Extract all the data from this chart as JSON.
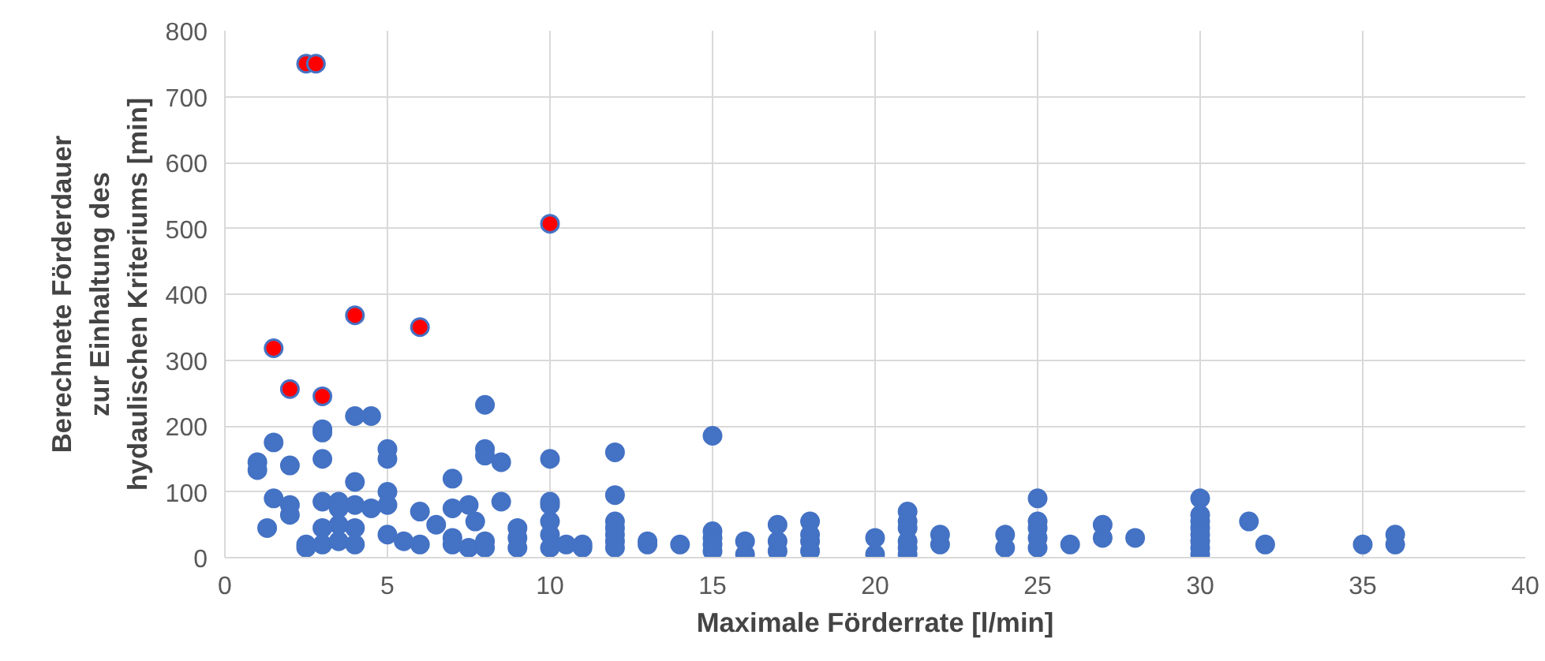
{
  "chart_data": {
    "type": "scatter",
    "xlabel": "Maximale Förderrate [l/min]",
    "ylabel": "Berechnete Förderdauer\nzur Einhaltung des\nhydaulischen Kriteriums [min]",
    "xlim": [
      0,
      40
    ],
    "ylim": [
      0,
      800
    ],
    "xticks": [
      0,
      5,
      10,
      15,
      20,
      25,
      30,
      35,
      40
    ],
    "yticks": [
      0,
      100,
      200,
      300,
      400,
      500,
      600,
      700,
      800
    ],
    "grid": true,
    "marker": "circle",
    "series": [
      {
        "color": "#4472c4",
        "x": [
          1,
          1,
          1.3,
          1.5,
          1.5,
          2,
          2,
          2,
          2.5,
          2.5,
          3,
          3,
          3,
          3,
          3,
          3,
          3.5,
          3.5,
          3.5,
          3.5,
          4,
          4,
          4,
          4,
          4,
          4.5,
          4.5,
          5,
          5,
          5,
          5,
          5,
          5.5,
          6,
          6,
          6.5,
          7,
          7,
          7,
          7,
          7.5,
          7.5,
          7.7,
          8,
          8,
          8,
          8,
          8,
          8.5,
          8.5,
          9,
          9,
          9,
          10,
          10,
          10,
          10,
          10,
          10,
          10.5,
          11,
          11,
          12,
          12,
          12,
          12,
          12,
          12,
          12,
          13,
          13,
          14,
          15,
          15,
          15,
          15,
          15,
          16,
          16,
          17,
          17,
          17,
          18,
          18,
          18,
          18,
          20,
          20,
          21,
          21,
          21,
          21,
          21,
          21,
          22,
          22,
          24,
          24,
          25,
          25,
          25,
          25,
          25,
          26,
          27,
          27,
          28,
          30,
          30,
          30,
          30,
          30,
          30,
          30,
          30,
          31.5,
          32,
          35,
          36,
          36
        ],
        "values": [
          145,
          133,
          45,
          90,
          175,
          140,
          80,
          65,
          20,
          15,
          195,
          190,
          150,
          85,
          45,
          20,
          85,
          75,
          50,
          25,
          215,
          115,
          80,
          45,
          20,
          215,
          75,
          165,
          150,
          100,
          80,
          35,
          25,
          70,
          20,
          50,
          120,
          75,
          30,
          20,
          80,
          15,
          55,
          232,
          165,
          155,
          25,
          15,
          145,
          85,
          45,
          30,
          15,
          150,
          85,
          80,
          55,
          35,
          15,
          20,
          20,
          15,
          160,
          95,
          55,
          45,
          35,
          25,
          15,
          25,
          20,
          20,
          185,
          40,
          30,
          20,
          10,
          25,
          5,
          50,
          25,
          10,
          55,
          35,
          25,
          10,
          30,
          5,
          70,
          55,
          45,
          25,
          15,
          5,
          35,
          20,
          35,
          15,
          90,
          55,
          45,
          30,
          15,
          20,
          50,
          30,
          30,
          90,
          65,
          55,
          45,
          35,
          25,
          15,
          5,
          55,
          20,
          20,
          35,
          20
        ]
      },
      {
        "color": "#ff0000",
        "x": [
          2.5,
          2.8,
          10,
          1.5,
          4,
          6,
          2,
          3
        ],
        "values": [
          750,
          750,
          507,
          318,
          368,
          350,
          256,
          245
        ]
      }
    ]
  }
}
